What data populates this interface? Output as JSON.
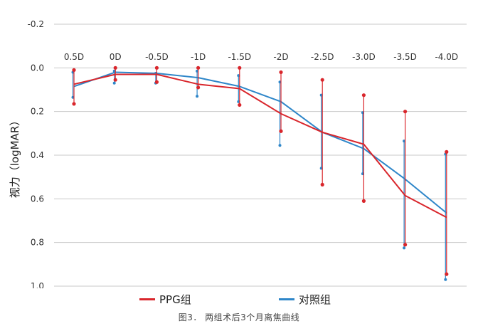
{
  "chart_data": {
    "type": "line",
    "ylabel": "视力（logMAR）",
    "y_axis_inverted": true,
    "ylim": [
      -0.2,
      1.0
    ],
    "yticks": [
      "-0.2",
      "0.0",
      "0.2",
      "0.4",
      "0.6",
      "0.8",
      "1.0"
    ],
    "ytick_values": [
      -0.2,
      0.0,
      0.2,
      0.4,
      0.6,
      0.8,
      1.0
    ],
    "categories": [
      "0.5D",
      "0D",
      "-0.5D",
      "-1D",
      "-1.5D",
      "-2D",
      "-2.5D",
      "-3.0D",
      "-3.5D",
      "-4.0D"
    ],
    "grid": "horizontal",
    "legend_position": "bottom",
    "series": [
      {
        "name": "PPG组",
        "color": "#d9262c",
        "values": [
          0.075,
          0.03,
          0.03,
          0.075,
          0.095,
          0.21,
          0.295,
          0.35,
          0.585,
          0.685
        ],
        "err_low": [
          0.01,
          0.0,
          0.0,
          0.0,
          0.0,
          0.02,
          0.055,
          0.125,
          0.2,
          0.385
        ],
        "err_high": [
          0.165,
          0.055,
          0.065,
          0.09,
          0.17,
          0.29,
          0.535,
          0.61,
          0.81,
          0.945
        ]
      },
      {
        "name": "对照组",
        "color": "#2e86c9",
        "values": [
          0.085,
          0.02,
          0.025,
          0.045,
          0.085,
          0.155,
          0.295,
          0.37,
          0.51,
          0.665
        ],
        "err_low": [
          0.02,
          0.015,
          0.025,
          0.015,
          0.035,
          0.065,
          0.125,
          0.205,
          0.335,
          0.395
        ],
        "err_high": [
          0.135,
          0.07,
          0.07,
          0.13,
          0.155,
          0.355,
          0.46,
          0.485,
          0.825,
          0.97
        ]
      }
    ]
  },
  "legend": [
    {
      "label": "PPG组",
      "color": "#d9262c"
    },
    {
      "label": "对照组",
      "color": "#2e86c9"
    }
  ],
  "caption": "图3． 两组术后3个月离焦曲线"
}
